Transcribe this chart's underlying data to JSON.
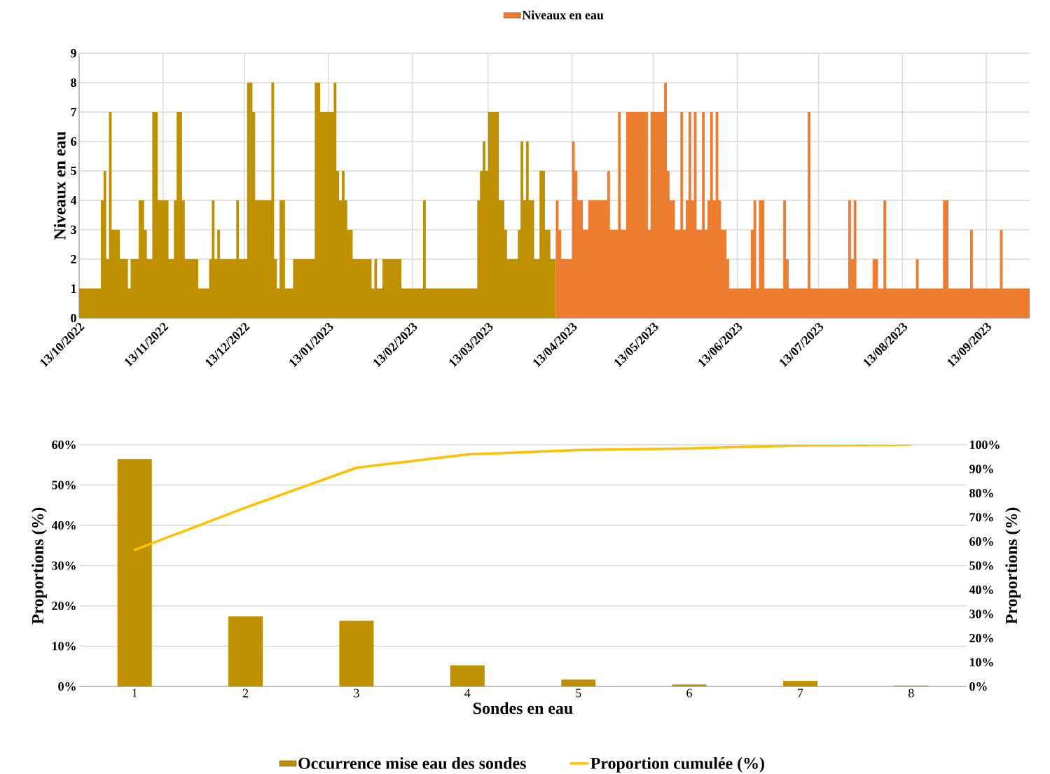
{
  "chart_data": [
    {
      "type": "area",
      "ylabel": "Niveaux en eau",
      "xlim": [
        "2022-10-13",
        "2023-09-29"
      ],
      "xticks": [
        {
          "value": "2022-10-13",
          "label": "13/10/2022"
        },
        {
          "value": "2022-11-13",
          "label": "13/11/2022"
        },
        {
          "value": "2022-12-13",
          "label": "13/12/2022"
        },
        {
          "value": "2023-01-13",
          "label": "13/01/2023"
        },
        {
          "value": "2023-02-13",
          "label": "13/02/2023"
        },
        {
          "value": "2023-03-13",
          "label": "13/03/2023"
        },
        {
          "value": "2023-04-13",
          "label": "13/04/2023"
        },
        {
          "value": "2023-05-13",
          "label": "13/05/2023"
        },
        {
          "value": "2023-06-13",
          "label": "13/06/2023"
        },
        {
          "value": "2023-07-13",
          "label": "13/07/2023"
        },
        {
          "value": "2023-08-13",
          "label": "13/08/2023"
        },
        {
          "value": "2023-09-13",
          "label": "13/09/2023"
        }
      ],
      "ylim": [
        0,
        9
      ],
      "yticks": [
        0,
        1,
        2,
        3,
        4,
        5,
        6,
        7,
        8,
        9
      ],
      "grid": true,
      "legend": "top",
      "series": [
        {
          "color": "#bf9000",
          "x": [
            "2022-10-13",
            "2022-10-21",
            "2022-10-22",
            "2022-10-23",
            "2022-10-24",
            "2022-10-25",
            "2022-10-28",
            "2022-10-31",
            "2022-11-01",
            "2022-11-04",
            "2022-11-06",
            "2022-11-07",
            "2022-11-09",
            "2022-11-11",
            "2022-11-15",
            "2022-11-17",
            "2022-11-18",
            "2022-11-20",
            "2022-11-21",
            "2022-11-26",
            "2022-11-30",
            "2022-12-01",
            "2022-12-02",
            "2022-12-03",
            "2022-12-04",
            "2022-12-10",
            "2022-12-11",
            "2022-12-14",
            "2022-12-16",
            "2022-12-17",
            "2022-12-23",
            "2022-12-24",
            "2022-12-25",
            "2022-12-26",
            "2022-12-28",
            "2022-12-31",
            "2023-01-08",
            "2023-01-10",
            "2023-01-15",
            "2023-01-16",
            "2023-01-17",
            "2023-01-18",
            "2023-01-19",
            "2023-01-20",
            "2023-01-22",
            "2023-01-29",
            "2023-01-30",
            "2023-01-31",
            "2023-02-02",
            "2023-02-09",
            "2023-02-17",
            "2023-02-18",
            "2023-03-09",
            "2023-03-10",
            "2023-03-11",
            "2023-03-12",
            "2023-03-13",
            "2023-03-17",
            "2023-03-19",
            "2023-03-20",
            "2023-03-24",
            "2023-03-25",
            "2023-03-26",
            "2023-03-27",
            "2023-03-28",
            "2023-03-30",
            "2023-04-01",
            "2023-04-03",
            "2023-04-05",
            "2023-04-07"
          ],
          "values": [
            1,
            4,
            5,
            2,
            7,
            3,
            2,
            1,
            2,
            4,
            3,
            2,
            7,
            4,
            2,
            4,
            7,
            4,
            2,
            1,
            2,
            4,
            2,
            3,
            2,
            4,
            2,
            8,
            7,
            4,
            8,
            2,
            1,
            4,
            1,
            2,
            8,
            7,
            8,
            5,
            4,
            5,
            4,
            3,
            2,
            1,
            2,
            1,
            2,
            1,
            4,
            1,
            4,
            5,
            6,
            5,
            7,
            4,
            3,
            2,
            3,
            6,
            4,
            6,
            4,
            2,
            5,
            3,
            2,
            2
          ]
        },
        {
          "name": "Niveaux en eau",
          "color": "#ed7d31",
          "x": [
            "2023-04-07",
            "2023-04-08",
            "2023-04-09",
            "2023-04-13",
            "2023-04-14",
            "2023-04-15",
            "2023-04-17",
            "2023-04-19",
            "2023-04-26",
            "2023-04-27",
            "2023-04-30",
            "2023-05-01",
            "2023-05-03",
            "2023-05-11",
            "2023-05-12",
            "2023-05-17",
            "2023-05-18",
            "2023-05-19",
            "2023-05-21",
            "2023-05-23",
            "2023-05-24",
            "2023-05-25",
            "2023-05-26",
            "2023-05-27",
            "2023-05-28",
            "2023-05-29",
            "2023-05-31",
            "2023-06-01",
            "2023-06-02",
            "2023-06-03",
            "2023-06-04",
            "2023-06-05",
            "2023-06-06",
            "2023-06-07",
            "2023-06-09",
            "2023-06-10",
            "2023-06-18",
            "2023-06-19",
            "2023-06-20",
            "2023-06-21",
            "2023-06-23",
            "2023-06-30",
            "2023-07-01",
            "2023-07-02",
            "2023-07-09",
            "2023-07-10",
            "2023-07-24",
            "2023-07-25",
            "2023-07-26",
            "2023-07-27",
            "2023-08-02",
            "2023-08-04",
            "2023-08-06",
            "2023-08-07",
            "2023-08-18",
            "2023-08-19",
            "2023-08-28",
            "2023-08-30",
            "2023-09-07",
            "2023-09-08",
            "2023-09-18",
            "2023-09-19",
            "2023-09-29"
          ],
          "values": [
            4,
            3,
            2,
            6,
            5,
            4,
            3,
            4,
            5,
            3,
            7,
            3,
            7,
            3,
            7,
            8,
            5,
            4,
            3,
            7,
            3,
            4,
            7,
            4,
            7,
            3,
            7,
            3,
            4,
            7,
            4,
            7,
            4,
            3,
            2,
            1,
            3,
            4,
            1,
            4,
            1,
            4,
            2,
            1,
            7,
            1,
            4,
            2,
            4,
            1,
            2,
            1,
            4,
            1,
            2,
            1,
            4,
            1,
            3,
            1,
            3,
            1,
            1
          ]
        }
      ]
    },
    {
      "type": "bar",
      "xlabel": "Sondes en eau",
      "ylabel": "Proportions (%)",
      "y2label": "Proportions (%)",
      "categories": [
        "1",
        "2",
        "3",
        "4",
        "5",
        "6",
        "7",
        "8"
      ],
      "ylim": [
        0,
        60
      ],
      "yticks": [
        {
          "value": 0,
          "label": "0%"
        },
        {
          "value": 10,
          "label": "10%"
        },
        {
          "value": 20,
          "label": "20%"
        },
        {
          "value": 30,
          "label": "30%"
        },
        {
          "value": 40,
          "label": "40%"
        },
        {
          "value": 50,
          "label": "50%"
        },
        {
          "value": 60,
          "label": "60%"
        }
      ],
      "y2lim": [
        0,
        100
      ],
      "y2ticks": [
        {
          "value": 0,
          "label": "0%"
        },
        {
          "value": 10,
          "label": "10%"
        },
        {
          "value": 20,
          "label": "20%"
        },
        {
          "value": 30,
          "label": "30%"
        },
        {
          "value": 40,
          "label": "40%"
        },
        {
          "value": 50,
          "label": "50%"
        },
        {
          "value": 60,
          "label": "60%"
        },
        {
          "value": 70,
          "label": "70%"
        },
        {
          "value": 80,
          "label": "80%"
        },
        {
          "value": 90,
          "label": "90%"
        },
        {
          "value": 100,
          "label": "100%"
        }
      ],
      "grid": "y",
      "legend": "bottom",
      "series": [
        {
          "name": "Occurrence mise eau des sondes",
          "color": "#bf9000",
          "values": [
            56.5,
            17.4,
            16.3,
            5.2,
            1.7,
            0.5,
            1.4,
            0.2
          ]
        },
        {
          "name": "Proportion cumulée (%)",
          "type": "line",
          "axis": "y2",
          "color": "#ffc000",
          "values": [
            56.5,
            74,
            90.5,
            96,
            97.8,
            98.5,
            99.7,
            100
          ]
        }
      ]
    }
  ]
}
